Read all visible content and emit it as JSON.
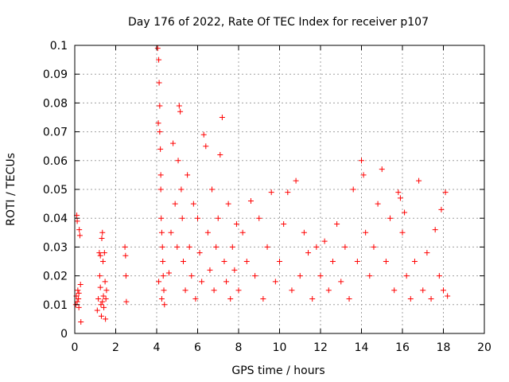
{
  "chart_data": {
    "type": "scatter",
    "title": "Day 176 of 2022, Rate Of TEC Index for receiver p107",
    "xlabel": "GPS time / hours",
    "ylabel": "ROTI / TECUs",
    "xlim": [
      0,
      20
    ],
    "ylim": [
      0,
      0.1
    ],
    "x_ticks": [
      "0",
      "2",
      "4",
      "6",
      "8",
      "10",
      "12",
      "14",
      "16",
      "18",
      "20"
    ],
    "y_ticks": [
      "0",
      "0.01",
      "0.02",
      "0.03",
      "0.04",
      "0.05",
      "0.06",
      "0.07",
      "0.08",
      "0.09",
      "0.1"
    ],
    "grid": true,
    "marker": "+",
    "marker_color": "#ff0000",
    "series": [
      {
        "values_xy": [
          [
            0.05,
            0.01
          ],
          [
            0.08,
            0.013
          ],
          [
            0.1,
            0.041
          ],
          [
            0.12,
            0.039
          ],
          [
            0.15,
            0.015
          ],
          [
            0.18,
            0.012
          ],
          [
            0.2,
            0.009
          ],
          [
            0.22,
            0.036
          ],
          [
            0.25,
            0.034
          ],
          [
            0.28,
            0.017
          ],
          [
            0.3,
            0.004
          ],
          [
            0.12,
            0.011
          ],
          [
            0.2,
            0.014
          ],
          [
            1.1,
            0.008
          ],
          [
            1.15,
            0.012
          ],
          [
            1.2,
            0.028
          ],
          [
            1.22,
            0.02
          ],
          [
            1.25,
            0.016
          ],
          [
            1.28,
            0.01
          ],
          [
            1.3,
            0.006
          ],
          [
            1.32,
            0.033
          ],
          [
            1.35,
            0.035
          ],
          [
            1.38,
            0.025
          ],
          [
            1.4,
            0.013
          ],
          [
            1.42,
            0.009
          ],
          [
            1.45,
            0.028
          ],
          [
            1.48,
            0.018
          ],
          [
            1.5,
            0.005
          ],
          [
            1.52,
            0.012
          ],
          [
            1.55,
            0.015
          ],
          [
            1.25,
            0.027
          ],
          [
            1.35,
            0.011
          ],
          [
            2.45,
            0.03
          ],
          [
            2.48,
            0.027
          ],
          [
            2.5,
            0.02
          ],
          [
            2.52,
            0.011
          ],
          [
            4.05,
            0.099
          ],
          [
            4.08,
            0.073
          ],
          [
            4.1,
            0.095
          ],
          [
            4.12,
            0.087
          ],
          [
            4.15,
            0.079
          ],
          [
            4.18,
            0.064
          ],
          [
            4.2,
            0.055
          ],
          [
            4.22,
            0.04
          ],
          [
            4.25,
            0.035
          ],
          [
            4.28,
            0.03
          ],
          [
            4.3,
            0.025
          ],
          [
            4.32,
            0.02
          ],
          [
            4.35,
            0.015
          ],
          [
            4.38,
            0.01
          ],
          [
            4.15,
            0.07
          ],
          [
            4.2,
            0.05
          ],
          [
            4.25,
            0.012
          ],
          [
            4.1,
            0.018
          ],
          [
            4.6,
            0.021
          ],
          [
            4.7,
            0.035
          ],
          [
            4.8,
            0.066
          ],
          [
            4.9,
            0.045
          ],
          [
            5.0,
            0.03
          ],
          [
            5.05,
            0.06
          ],
          [
            5.1,
            0.079
          ],
          [
            5.15,
            0.077
          ],
          [
            5.2,
            0.05
          ],
          [
            5.25,
            0.04
          ],
          [
            5.3,
            0.025
          ],
          [
            5.4,
            0.015
          ],
          [
            5.5,
            0.055
          ],
          [
            5.6,
            0.03
          ],
          [
            5.7,
            0.02
          ],
          [
            5.8,
            0.045
          ],
          [
            5.9,
            0.012
          ],
          [
            6.0,
            0.04
          ],
          [
            6.1,
            0.028
          ],
          [
            6.2,
            0.018
          ],
          [
            6.3,
            0.069
          ],
          [
            6.4,
            0.065
          ],
          [
            6.5,
            0.035
          ],
          [
            6.6,
            0.022
          ],
          [
            6.7,
            0.05
          ],
          [
            6.8,
            0.015
          ],
          [
            6.9,
            0.03
          ],
          [
            7.0,
            0.04
          ],
          [
            7.1,
            0.062
          ],
          [
            7.2,
            0.075
          ],
          [
            7.3,
            0.025
          ],
          [
            7.4,
            0.018
          ],
          [
            7.5,
            0.045
          ],
          [
            7.6,
            0.012
          ],
          [
            7.7,
            0.03
          ],
          [
            7.8,
            0.022
          ],
          [
            7.9,
            0.038
          ],
          [
            8.0,
            0.015
          ],
          [
            8.2,
            0.035
          ],
          [
            8.4,
            0.025
          ],
          [
            8.6,
            0.046
          ],
          [
            8.8,
            0.02
          ],
          [
            9.0,
            0.04
          ],
          [
            9.2,
            0.012
          ],
          [
            9.4,
            0.03
          ],
          [
            9.6,
            0.049
          ],
          [
            9.8,
            0.018
          ],
          [
            10.0,
            0.025
          ],
          [
            10.2,
            0.038
          ],
          [
            10.4,
            0.049
          ],
          [
            10.6,
            0.015
          ],
          [
            10.8,
            0.053
          ],
          [
            11.0,
            0.02
          ],
          [
            11.2,
            0.035
          ],
          [
            11.4,
            0.028
          ],
          [
            11.6,
            0.012
          ],
          [
            11.8,
            0.03
          ],
          [
            12.0,
            0.02
          ],
          [
            12.2,
            0.032
          ],
          [
            12.4,
            0.015
          ],
          [
            12.6,
            0.025
          ],
          [
            12.8,
            0.038
          ],
          [
            13.0,
            0.018
          ],
          [
            13.2,
            0.03
          ],
          [
            13.4,
            0.012
          ],
          [
            13.6,
            0.05
          ],
          [
            13.8,
            0.025
          ],
          [
            14.0,
            0.06
          ],
          [
            14.1,
            0.055
          ],
          [
            14.2,
            0.035
          ],
          [
            14.4,
            0.02
          ],
          [
            14.6,
            0.03
          ],
          [
            14.8,
            0.045
          ],
          [
            15.0,
            0.057
          ],
          [
            15.2,
            0.025
          ],
          [
            15.4,
            0.04
          ],
          [
            15.6,
            0.015
          ],
          [
            15.8,
            0.049
          ],
          [
            15.9,
            0.047
          ],
          [
            16.0,
            0.035
          ],
          [
            16.1,
            0.042
          ],
          [
            16.2,
            0.02
          ],
          [
            16.4,
            0.012
          ],
          [
            16.6,
            0.025
          ],
          [
            16.8,
            0.053
          ],
          [
            17.0,
            0.015
          ],
          [
            17.2,
            0.028
          ],
          [
            17.4,
            0.012
          ],
          [
            17.6,
            0.036
          ],
          [
            17.8,
            0.02
          ],
          [
            17.9,
            0.043
          ],
          [
            18.0,
            0.015
          ],
          [
            18.1,
            0.049
          ],
          [
            18.2,
            0.013
          ]
        ]
      }
    ]
  }
}
